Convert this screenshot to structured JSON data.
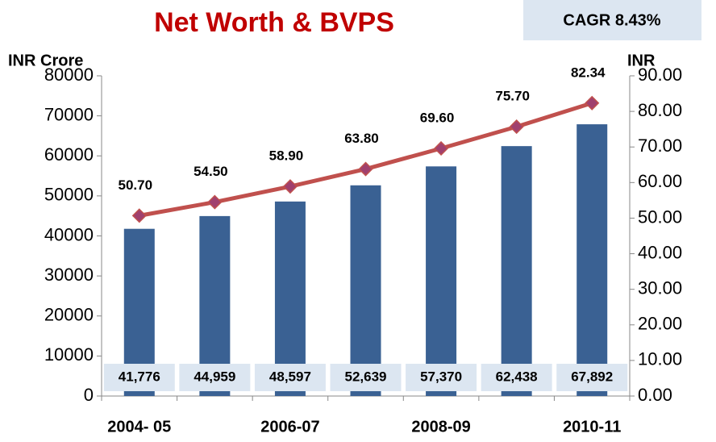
{
  "chart_data": {
    "type": "bar-line",
    "title": "Net Worth & BVPS",
    "annotation": "CAGR 8.43%",
    "ylabel": "INR Crore",
    "y2label": "INR",
    "categories": [
      "2004- 05",
      null,
      "2006-07",
      null,
      "2008-09",
      null,
      "2010-11"
    ],
    "series": [
      {
        "type": "bar",
        "color": "#3a6193",
        "values": [
          41776,
          44959,
          48597,
          52639,
          57370,
          62438,
          67892
        ],
        "value_labels": [
          "41,776",
          "44,959",
          "48,597",
          "52,639",
          "57,370",
          "62,438",
          "67,892"
        ]
      },
      {
        "type": "line",
        "axis": "y2",
        "color": "#c0504d",
        "marker_color": "#a0406e",
        "values": [
          50.7,
          54.5,
          58.9,
          63.8,
          69.6,
          75.7,
          82.34
        ],
        "value_labels": [
          "50.70",
          "54.50",
          "58.90",
          "63.80",
          "69.60",
          "75.70",
          "82.34"
        ]
      }
    ],
    "ylim": [
      0,
      80000
    ],
    "yticks": [
      0,
      10000,
      20000,
      30000,
      40000,
      50000,
      60000,
      70000,
      80000
    ],
    "y2lim": [
      0,
      90
    ],
    "y2ticks": [
      {
        "value": 0,
        "label": "0.00"
      },
      {
        "value": 10,
        "label": "10.00"
      },
      {
        "value": 20,
        "label": "20.00"
      },
      {
        "value": 30,
        "label": "30.00"
      },
      {
        "value": 40,
        "label": "40.00"
      },
      {
        "value": 50,
        "label": "50.00"
      },
      {
        "value": 60,
        "label": "60.00"
      },
      {
        "value": 70,
        "label": "70.00"
      },
      {
        "value": 80,
        "label": "80.00"
      },
      {
        "value": 90,
        "label": "90.00"
      }
    ]
  }
}
